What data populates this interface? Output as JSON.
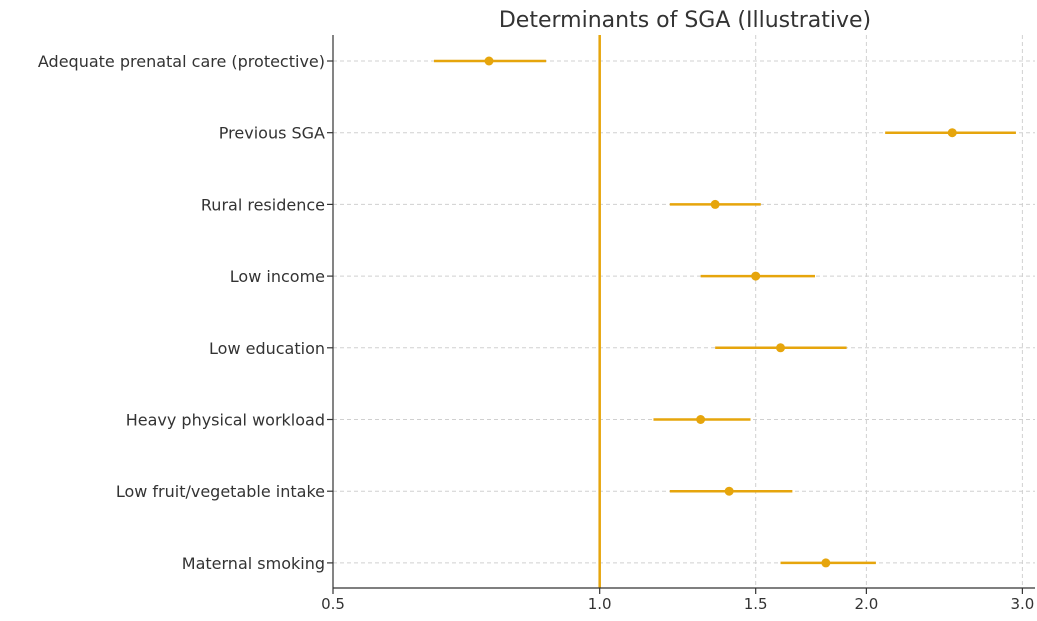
{
  "chart_data": {
    "type": "scatter",
    "title": "Determinants of SGA (Illustrative)",
    "xlabel": "",
    "ylabel": "",
    "x_scale": "log",
    "xlim": [
      0.5,
      3.1
    ],
    "x_ticks": [
      0.5,
      1.0,
      1.5,
      2.0,
      3.0
    ],
    "x_tick_labels": [
      "0.5",
      "1.0",
      "1.5",
      "2.0",
      "3.0"
    ],
    "reference_line": 1.0,
    "grid": true,
    "color": "#E6A50C",
    "categories": [
      "Adequate prenatal care (protective)",
      "Previous SGA",
      "Rural residence",
      "Low income",
      "Low education",
      "Heavy physical workload",
      "Low fruit/vegetable intake",
      "Maternal smoking"
    ],
    "estimates": [
      0.75,
      2.5,
      1.35,
      1.5,
      1.6,
      1.3,
      1.4,
      1.8
    ],
    "lower": [
      0.65,
      2.1,
      1.2,
      1.3,
      1.35,
      1.15,
      1.2,
      1.6
    ],
    "upper": [
      0.87,
      2.95,
      1.52,
      1.75,
      1.9,
      1.48,
      1.65,
      2.05
    ]
  }
}
